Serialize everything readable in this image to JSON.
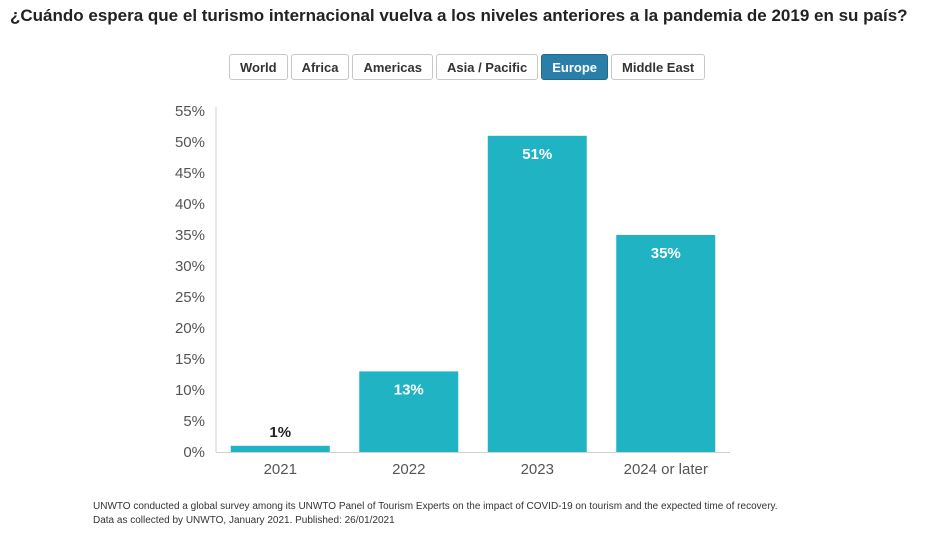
{
  "title": "¿Cuándo espera que el turismo internacional vuelva a los niveles anteriores a la pandemia de 2019 en su país?",
  "tabs": [
    {
      "label": "World",
      "active": false
    },
    {
      "label": "Africa",
      "active": false
    },
    {
      "label": "Americas",
      "active": false
    },
    {
      "label": "Asia / Pacific",
      "active": false
    },
    {
      "label": "Europe",
      "active": true
    },
    {
      "label": "Middle East",
      "active": false
    }
  ],
  "footnote": {
    "line1": "UNWTO conducted a global survey among its UNWTO Panel of Tourism Experts on the impact of COVID-19 on tourism and the expected time of recovery.",
    "line2": "Data as collected by UNWTO, January 2021. Published: 26/01/2021"
  },
  "colors": {
    "bar": "#1fb3c4",
    "active_tab": "#2a7fa8"
  },
  "chart_data": {
    "type": "bar",
    "categories": [
      "2021",
      "2022",
      "2023",
      "2024 or later"
    ],
    "values": [
      1,
      13,
      51,
      35
    ],
    "data_labels": [
      "1%",
      "13%",
      "51%",
      "35%"
    ],
    "ylim": [
      0,
      55
    ],
    "yticks": [
      "0%",
      "5%",
      "10%",
      "15%",
      "20%",
      "25%",
      "30%",
      "35%",
      "40%",
      "45%",
      "50%",
      "55%"
    ],
    "ytick_values": [
      0,
      5,
      10,
      15,
      20,
      25,
      30,
      35,
      40,
      45,
      50,
      55
    ],
    "grid": false
  }
}
